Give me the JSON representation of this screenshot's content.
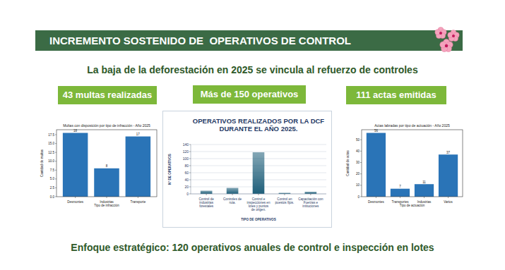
{
  "header": {
    "title": "INCREMENTO SOSTENIDO DE  OPERATIVOS DE CONTROL"
  },
  "subtitle": "La baja de la deforestación en 2025 se vincula al refuerzo de controles",
  "stats": [
    "43 multas realizadas",
    "Más de 150 operativos",
    "111 actas emitidas"
  ],
  "footer": "Enfoque estratégico: 120 operativos anuales de control e inspección en lotes",
  "chart_data": [
    {
      "type": "bar",
      "title": "Multas con disposición por tipo de infracción - Año 2025",
      "x_label": "Tipo de infracción",
      "y_label": "Cantidad de multas",
      "categories": [
        "Desmontes",
        "Industrias",
        "Transporte"
      ],
      "values": [
        18,
        8,
        17
      ],
      "color": "#2a74b7",
      "ylim": [
        0,
        18.9
      ],
      "yticks": [
        {
          "value": 0,
          "label": "0.0"
        },
        {
          "value": 2.5,
          "label": "2.5"
        },
        {
          "value": 5,
          "label": "5.0"
        },
        {
          "value": 7.5,
          "label": "7.5"
        },
        {
          "value": 10,
          "label": "10.0"
        },
        {
          "value": 12.5,
          "label": "12.5"
        },
        {
          "value": 15,
          "label": "15.0"
        },
        {
          "value": 17.5,
          "label": "17.5"
        }
      ],
      "data_labels": true,
      "grid": false
    },
    {
      "type": "bar",
      "title": "OPERATIVOS  REALIZADOS POR LA DCF DURANTE EL AÑO 2025.",
      "x_label": "TIPO DE OPERATIVOS",
      "y_label": "N° DE OPERATIVOS",
      "categories": [
        "Control de industrias forestales",
        "Controles de ruta.",
        "Control e inspecciones en lotes y puntos de origen.",
        "Control en puestos fijos.",
        "Capacitación con Fuerzas e intituciones"
      ],
      "values": [
        9,
        17,
        118,
        3,
        6
      ],
      "color": "#1f5f7a",
      "ylim": [
        0,
        140
      ],
      "yticks": [
        0,
        20,
        40,
        60,
        80,
        100,
        120,
        140
      ],
      "data_labels": false,
      "grid": true
    },
    {
      "type": "bar",
      "title": "Actas labradas por tipo de actuación - Año 2025",
      "x_label": "Tipo de actuación",
      "y_label": "Cantidad de actas",
      "categories": [
        "Desmontes",
        "Transportes",
        "Industrias",
        "Varios"
      ],
      "values": [
        56,
        7,
        11,
        37
      ],
      "color": "#2a74b7",
      "ylim": [
        0,
        58.8
      ],
      "yticks": [
        0,
        10,
        20,
        30,
        40,
        50
      ],
      "data_labels": true,
      "grid": false
    }
  ]
}
